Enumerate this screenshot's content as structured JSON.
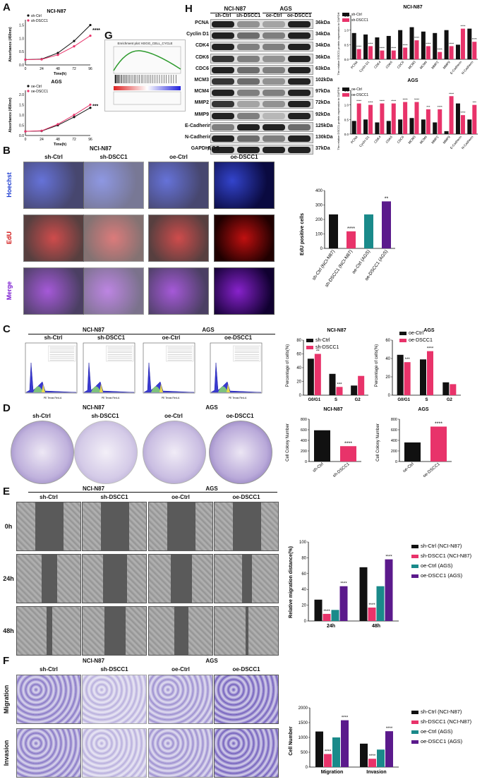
{
  "panels": {
    "A": "A",
    "B": "B",
    "C": "C",
    "D": "D",
    "E": "E",
    "F": "F",
    "G": "G",
    "H": "H"
  },
  "colors": {
    "ctrl": "#111111",
    "sh": "#e8336a",
    "oe_ctrl": "#1a8a8a",
    "oe": "#5b1a8c"
  },
  "lines_ncin87": {
    "dataset": "NCI-N87",
    "ylabel": "Absorbance (450nm)",
    "xlabel": "Time(h)",
    "xticks": [
      "0",
      "24",
      "48",
      "72",
      "96"
    ],
    "yticks": [
      "0.0",
      "0.5",
      "1.0",
      "1.5"
    ],
    "legend": [
      "sh-Ctrl",
      "sh-DSCC1"
    ],
    "sig": "****",
    "chart_data": {
      "type": "line",
      "x": [
        0,
        24,
        48,
        72,
        96
      ],
      "series": [
        {
          "name": "sh-Ctrl",
          "values": [
            0.2,
            0.22,
            0.45,
            0.9,
            1.5
          ]
        },
        {
          "name": "sh-DSCC1",
          "values": [
            0.2,
            0.21,
            0.38,
            0.7,
            1.1
          ]
        }
      ],
      "ylim": [
        0,
        1.7
      ]
    }
  },
  "lines_ags": {
    "dataset": "AGS",
    "ylabel": "Absorbance (450nm)",
    "xlabel": "Time(h)",
    "xticks": [
      "0",
      "24",
      "48",
      "72",
      "96"
    ],
    "yticks": [
      "0.0",
      "0.5",
      "1.0",
      "1.5",
      "2.0"
    ],
    "legend": [
      "oe-Ctrl",
      "oe-DSCC1"
    ],
    "sig": "***",
    "chart_data": {
      "type": "line",
      "x": [
        0,
        24,
        48,
        72,
        96
      ],
      "series": [
        {
          "name": "oe-Ctrl",
          "values": [
            0.2,
            0.22,
            0.5,
            0.9,
            1.35
          ]
        },
        {
          "name": "oe-DSCC1",
          "values": [
            0.2,
            0.23,
            0.55,
            1.0,
            1.5
          ]
        }
      ],
      "ylim": [
        0,
        2.2
      ]
    }
  },
  "gsea": {
    "title": "Enrichment plot: KEGG_CELL_CYCLE"
  },
  "wb": {
    "groups": [
      "NCI-N87",
      "AGS"
    ],
    "lanes": [
      "sh-Ctrl",
      "sh-DSCC1",
      "oe-Ctrl",
      "oe-DSCC1"
    ],
    "rows": [
      {
        "name": "PCNA",
        "kda": "36kDa"
      },
      {
        "name": "Cyclin D1",
        "kda": "34kDa"
      },
      {
        "name": "CDK4",
        "kda": "34kDa"
      },
      {
        "name": "CDK6",
        "kda": "36kDa"
      },
      {
        "name": "CDC6",
        "kda": "63kDa"
      },
      {
        "name": "MCM3",
        "kda": "102kDa"
      },
      {
        "name": "MCM4",
        "kda": "97kDa"
      },
      {
        "name": "MMP2",
        "kda": "72kDa"
      },
      {
        "name": "MMP9",
        "kda": "92kDa"
      },
      {
        "name": "E-Cadherin",
        "kda": "125kDa"
      },
      {
        "name": "N-Cadherin",
        "kda": "130kDa"
      },
      {
        "name": "GAPDH",
        "kda": "37kDa"
      }
    ]
  },
  "h_ncin87": {
    "title": "NCI-N87",
    "ylabel": "The relative DSCC1 protein expression to GAPDH",
    "legend": [
      "sh-Ctrl",
      "sh-DSCC1"
    ],
    "yticks": [
      "0.0",
      "0.5",
      "1.0",
      "1.5"
    ],
    "chart_data": {
      "type": "bar",
      "categories": [
        "PCNA",
        "Cyclin D1",
        "CDK4",
        "CDK6",
        "CDC6",
        "MCM3",
        "MCM4",
        "MMP2",
        "MMP9",
        "E-Cadherin",
        "N-Cadherin"
      ],
      "series": [
        {
          "name": "sh-Ctrl",
          "values": [
            0.9,
            0.85,
            0.75,
            0.8,
            1.0,
            1.1,
            0.95,
            0.9,
            1.0,
            0.5,
            1.05
          ]
        },
        {
          "name": "sh-DSCC1",
          "values": [
            0.35,
            0.45,
            0.3,
            0.3,
            0.4,
            0.65,
            0.45,
            0.25,
            0.45,
            1.05,
            0.6
          ]
        }
      ],
      "sig": [
        "****",
        "****",
        "****",
        "****",
        "****",
        "****",
        "****",
        "****",
        "****",
        "****",
        "****"
      ],
      "ylim": [
        0,
        1.5
      ]
    }
  },
  "h_ags": {
    "title": "AGS",
    "ylabel": "The relative DSCC1 protein expression to GAPDH",
    "legend": [
      "oe-Ctrl",
      "oe-DSCC1"
    ],
    "yticks": [
      "0.0",
      "0.5",
      "1.0",
      "1.5"
    ],
    "chart_data": {
      "type": "bar",
      "categories": [
        "PCNA",
        "Cyclin D1",
        "CDK4",
        "CDK6",
        "CDC6",
        "MCM3",
        "MCM4",
        "MMP2",
        "MMP9",
        "E-Cadherin",
        "N-Cadherin"
      ],
      "series": [
        {
          "name": "oe-Ctrl",
          "values": [
            0.45,
            0.5,
            0.4,
            0.45,
            0.5,
            0.55,
            0.5,
            0.4,
            0.1,
            1.05,
            0.5
          ]
        },
        {
          "name": "oe-DSCC1",
          "values": [
            1.05,
            1.0,
            1.05,
            1.05,
            1.1,
            1.1,
            0.85,
            0.85,
            1.3,
            0.65,
            1.0
          ]
        }
      ],
      "sig": [
        "****",
        "****",
        "****",
        "****",
        "****",
        "****",
        "***",
        "****",
        "****",
        "****",
        "***"
      ],
      "ylim": [
        0,
        1.5
      ]
    }
  },
  "edu": {
    "group1": "NCI-N87",
    "group2": "AGS",
    "cols": [
      "sh-Ctrl",
      "sh-DSCC1",
      "oe-Ctrl",
      "oe-DSCC1"
    ],
    "rows": [
      "Hoechst",
      "EdU",
      "Merge"
    ],
    "ylabel": "EdU positive cells",
    "yticks": [
      "0",
      "100",
      "200",
      "300",
      "400"
    ],
    "chart_data": {
      "type": "bar",
      "categories": [
        "sh-Ctrl (NCI-N87)",
        "sh-DSCC1 (NCI-N87)",
        "oe-Ctrl (AGS)",
        "oe-DSCC1 (AGS)"
      ],
      "values": [
        235,
        118,
        235,
        325
      ],
      "sig": [
        "",
        "****",
        "",
        "**"
      ],
      "ylim": [
        0,
        400
      ]
    }
  },
  "cycle": {
    "group1": "NCI-N87",
    "group2": "AGS",
    "cols": [
      "sh-Ctrl",
      "sh-DSCC1",
      "oe-Ctrl",
      "oe-DSCC1"
    ],
    "xaxis": "PE Texas Red-A"
  },
  "cyc_ncin87": {
    "title": "NCI-N87",
    "ylabel": "Percentage of cells(%)",
    "legend": [
      "sh-Ctrl",
      "sh-DSCC1"
    ],
    "yticks": [
      "0",
      "20",
      "40",
      "60",
      "80"
    ],
    "chart_data": {
      "type": "bar",
      "categories": [
        "G0/G1",
        "S",
        "G2"
      ],
      "series": [
        {
          "name": "sh-Ctrl",
          "values": [
            53,
            31,
            14
          ]
        },
        {
          "name": "sh-DSCC1",
          "values": [
            60,
            12,
            28
          ]
        }
      ],
      "sig": [
        "**",
        "***",
        ""
      ],
      "ylim": [
        0,
        80
      ]
    }
  },
  "cyc_ags": {
    "title": "AGS",
    "ylabel": "Percentage of cells(%)",
    "legend": [
      "oe-Ctrl",
      "oe-DSCC1"
    ],
    "yticks": [
      "0",
      "20",
      "40",
      "60"
    ],
    "chart_data": {
      "type": "bar",
      "categories": [
        "G0/G1",
        "S",
        "G2"
      ],
      "series": [
        {
          "name": "oe-Ctrl",
          "values": [
            44,
            39,
            14
          ]
        },
        {
          "name": "oe-DSCC1",
          "values": [
            36,
            48,
            12
          ]
        }
      ],
      "sig": [
        "***",
        "****",
        ""
      ],
      "ylim": [
        0,
        60
      ]
    }
  },
  "colony": {
    "group1": "NCI-N87",
    "group2": "AGS",
    "cols": [
      "sh-Ctrl",
      "sh-DSCC1",
      "oe-Ctrl",
      "oe-DSCC1"
    ]
  },
  "col_ncin87": {
    "title": "NCI-N87",
    "ylabel": "Cell Colony Number",
    "yticks": [
      "0",
      "200",
      "400",
      "600",
      "800"
    ],
    "chart_data": {
      "type": "bar",
      "categories": [
        "sh-Ctrl",
        "sh-DSCC1"
      ],
      "values": [
        590,
        290
      ],
      "sig": [
        "",
        "****"
      ],
      "ylim": [
        0,
        800
      ]
    }
  },
  "col_ags": {
    "title": "AGS",
    "ylabel": "Cell Colony Number",
    "yticks": [
      "0",
      "200",
      "400",
      "600",
      "800"
    ],
    "chart_data": {
      "type": "bar",
      "categories": [
        "oe-Ctrl",
        "oe-DSCC1"
      ],
      "values": [
        360,
        660
      ],
      "sig": [
        "",
        "****"
      ],
      "ylim": [
        0,
        800
      ]
    }
  },
  "wound": {
    "group1": "NCI-N87",
    "group2": "AGS",
    "cols": [
      "sh-Ctrl",
      "sh-DSCC1",
      "oe-Ctrl",
      "oe-DSCC1"
    ],
    "rows": [
      "0h",
      "24h",
      "48h"
    ],
    "ylabel": "Relative migration distance(%)",
    "yticks": [
      "0",
      "20",
      "40",
      "60",
      "80",
      "100"
    ],
    "legend": [
      "sh-Ctrl (NCI-N87)",
      "sh-DSCC1 (NCI-N87)",
      "oe-Ctrl (AGS)",
      "oe-DSCC1 (AGS)"
    ],
    "chart_data": {
      "type": "bar",
      "categories": [
        "24h",
        "48h"
      ],
      "series": [
        {
          "name": "sh-Ctrl (NCI-N87)",
          "values": [
            27,
            68
          ]
        },
        {
          "name": "sh-DSCC1 (NCI-N87)",
          "values": [
            9,
            17
          ]
        },
        {
          "name": "oe-Ctrl (AGS)",
          "values": [
            14,
            44
          ]
        },
        {
          "name": "oe-DSCC1 (AGS)",
          "values": [
            44,
            78
          ]
        }
      ],
      "sig": [
        [
          "",
          "****",
          "",
          "****"
        ],
        [
          "",
          "****",
          "",
          "****"
        ]
      ],
      "ylim": [
        0,
        100
      ]
    }
  },
  "transwell": {
    "group1": "NCI-N87",
    "group2": "AGS",
    "cols": [
      "sh-Ctrl",
      "sh-DSCC1",
      "oe-Ctrl",
      "oe-DSCC1"
    ],
    "rows": [
      "Migration",
      "Invasion"
    ],
    "ylabel": "Cell Number",
    "yticks": [
      "0",
      "500",
      "1000",
      "1500",
      "2000"
    ],
    "legend": [
      "sh-Ctrl (NCI-N87)",
      "sh-DSCC1 (NCI-N87)",
      "oe-Ctrl (AGS)",
      "oe-DSCC1 (AGS)"
    ],
    "chart_data": {
      "type": "bar",
      "categories": [
        "Migration",
        "Invasion"
      ],
      "series": [
        {
          "name": "sh-Ctrl (NCI-N87)",
          "values": [
            1200,
            790
          ]
        },
        {
          "name": "sh-DSCC1 (NCI-N87)",
          "values": [
            440,
            280
          ]
        },
        {
          "name": "oe-Ctrl (AGS)",
          "values": [
            1000,
            590
          ]
        },
        {
          "name": "oe-DSCC1 (AGS)",
          "values": [
            1580,
            1210
          ]
        }
      ],
      "sig": [
        [
          "",
          "****",
          "",
          "****"
        ],
        [
          "",
          "****",
          "",
          "****"
        ]
      ],
      "ylim": [
        0,
        2000
      ]
    }
  }
}
